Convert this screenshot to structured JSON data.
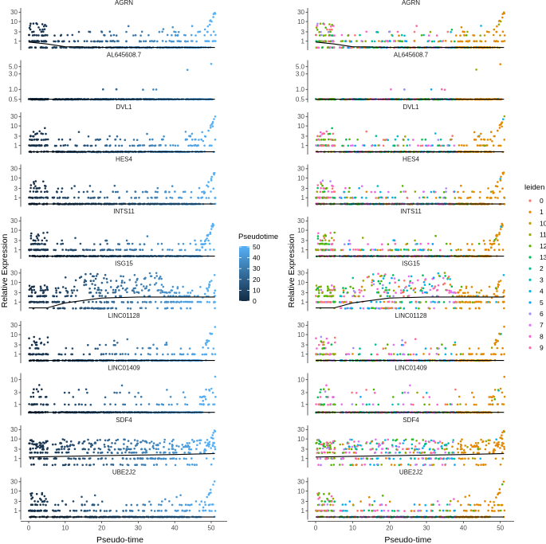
{
  "chart_data": {
    "type": "scatter",
    "xlabel": "Pseudo-time",
    "ylabel": "Relative Expression",
    "x_ticks": [
      "0",
      "10",
      "20",
      "30",
      "40",
      "50"
    ],
    "xlim": [
      -1,
      52
    ],
    "y_scale": "log10",
    "genes": [
      {
        "name": "AGRN",
        "yticks": [
          "1",
          "3",
          "10",
          "30"
        ],
        "ylim": [
          0.42,
          45
        ],
        "peak": 30,
        "mid_rate": 0.35,
        "trend": [
          [
            0,
            0.9
          ],
          [
            5,
            0.72
          ],
          [
            10,
            0.52
          ],
          [
            20,
            0.48
          ],
          [
            51,
            0.48
          ]
        ]
      },
      {
        "name": "AL645608.7",
        "yticks": [
          "0.5",
          "1.0",
          "3.0",
          "5.0"
        ],
        "ylim": [
          0.45,
          7.5
        ],
        "peak": 6,
        "mid_rate": 0.02,
        "trend": [
          [
            0,
            0.5
          ],
          [
            51,
            0.5
          ]
        ]
      },
      {
        "name": "DVL1",
        "yticks": [
          "1",
          "3",
          "10",
          "30"
        ],
        "ylim": [
          0.42,
          45
        ],
        "peak": 25,
        "mid_rate": 0.3,
        "trend": [
          [
            0,
            0.48
          ],
          [
            51,
            0.48
          ]
        ]
      },
      {
        "name": "HES4",
        "yticks": [
          "1",
          "3",
          "10",
          "30"
        ],
        "ylim": [
          0.42,
          45
        ],
        "peak": 20,
        "mid_rate": 0.25,
        "trend": [
          [
            0,
            0.48
          ],
          [
            51,
            0.48
          ]
        ]
      },
      {
        "name": "INTS11",
        "yticks": [
          "1",
          "3",
          "10",
          "30"
        ],
        "ylim": [
          0.42,
          45
        ],
        "peak": 30,
        "mid_rate": 0.3,
        "trend": [
          [
            0,
            0.48
          ],
          [
            51,
            0.48
          ]
        ]
      },
      {
        "name": "ISG15",
        "yticks": [
          "1",
          "3",
          "10",
          "30"
        ],
        "ylim": [
          0.42,
          45
        ],
        "peak": 30,
        "mid_rate": 0.85,
        "trend": [
          [
            0,
            0.5
          ],
          [
            5,
            0.5
          ],
          [
            10,
            0.9
          ],
          [
            20,
            1.6
          ],
          [
            30,
            1.8
          ],
          [
            51,
            1.8
          ]
        ]
      },
      {
        "name": "LINC01128",
        "yticks": [
          "1",
          "3",
          "10",
          "30"
        ],
        "ylim": [
          0.42,
          45
        ],
        "peak": 30,
        "mid_rate": 0.2,
        "trend": [
          [
            0,
            0.48
          ],
          [
            51,
            0.48
          ]
        ]
      },
      {
        "name": "LINC01409",
        "yticks": [
          "1",
          "3",
          "10"
        ],
        "ylim": [
          0.42,
          17
        ],
        "peak": 12,
        "mid_rate": 0.15,
        "trend": [
          [
            0,
            0.48
          ],
          [
            51,
            0.48
          ]
        ]
      },
      {
        "name": "SDF4",
        "yticks": [
          "1",
          "3",
          "10",
          "30"
        ],
        "ylim": [
          0.42,
          45
        ],
        "peak": 25,
        "mid_rate": 0.85,
        "trend": [
          [
            0,
            1.2
          ],
          [
            20,
            1.4
          ],
          [
            40,
            1.6
          ],
          [
            51,
            1.8
          ]
        ]
      },
      {
        "name": "UBE2J2",
        "yticks": [
          "1",
          "3",
          "10",
          "30"
        ],
        "ylim": [
          0.42,
          45
        ],
        "peak": 30,
        "mid_rate": 0.35,
        "trend": [
          [
            0,
            0.48
          ],
          [
            51,
            0.48
          ]
        ]
      }
    ],
    "left_legend": {
      "title": "Pseudotime",
      "ticks": [
        "0",
        "10",
        "20",
        "30",
        "40",
        "50"
      ],
      "range": [
        0,
        50
      ],
      "low_color": "#132B43",
      "high_color": "#56B1F7"
    },
    "right_legend": {
      "title": "leiden",
      "items": [
        {
          "label": "0",
          "color": "#F8766D"
        },
        {
          "label": "1",
          "color": "#E38900"
        },
        {
          "label": "10",
          "color": "#C49A00"
        },
        {
          "label": "11",
          "color": "#99A800"
        },
        {
          "label": "12",
          "color": "#53B400"
        },
        {
          "label": "13",
          "color": "#00BC56"
        },
        {
          "label": "2",
          "color": "#00C094"
        },
        {
          "label": "3",
          "color": "#00BFC4"
        },
        {
          "label": "4",
          "color": "#00B6EB"
        },
        {
          "label": "5",
          "color": "#06A4FF"
        },
        {
          "label": "6",
          "color": "#A58AFF"
        },
        {
          "label": "7",
          "color": "#DF70F8"
        },
        {
          "label": "8",
          "color": "#FB61D7"
        },
        {
          "label": "9",
          "color": "#FF66A8"
        }
      ]
    }
  }
}
